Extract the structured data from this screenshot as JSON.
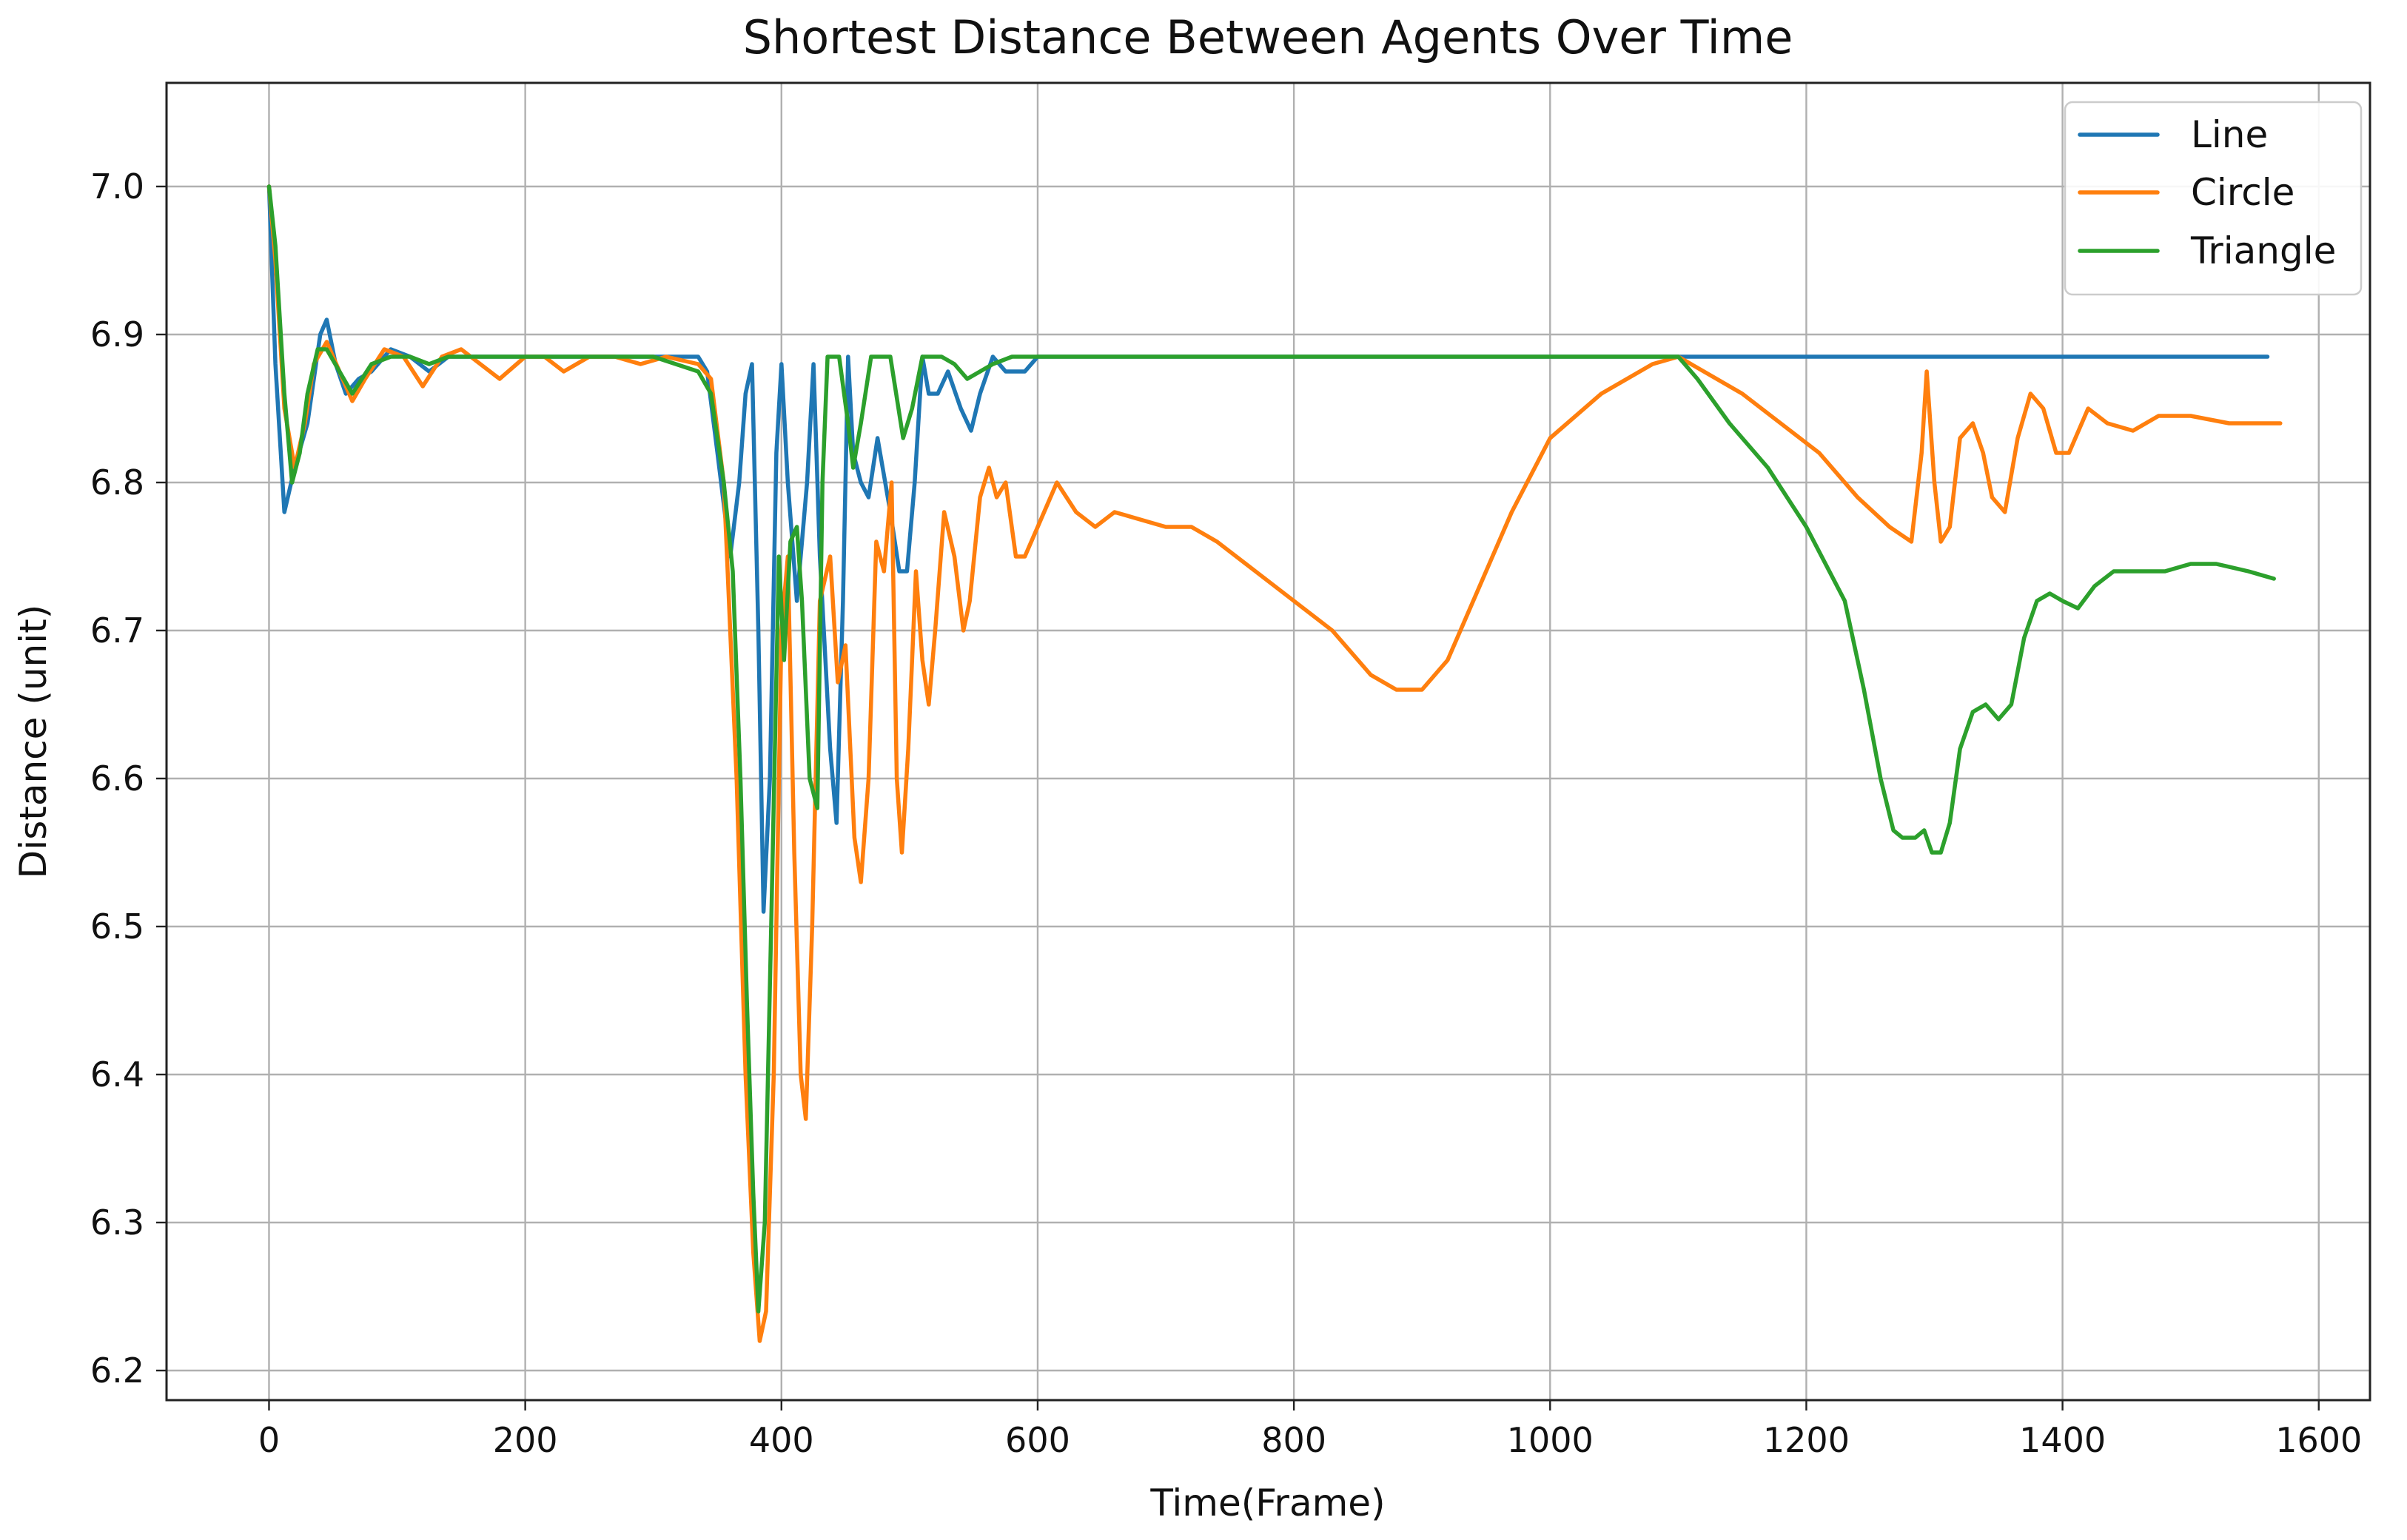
{
  "chart_data": {
    "type": "line",
    "title": "Shortest Distance Between Agents Over Time",
    "xlabel": "Time(Frame)",
    "ylabel": "Distance (unit)",
    "xlim": [
      -80,
      1640
    ],
    "ylim": [
      6.18,
      7.07
    ],
    "xticks": [
      0,
      200,
      400,
      600,
      800,
      1000,
      1200,
      1400,
      1600
    ],
    "xtick_labels": [
      "0",
      "200",
      "400",
      "600",
      "800",
      "1000",
      "1200",
      "1400",
      "1600"
    ],
    "yticks": [
      6.2,
      6.3,
      6.4,
      6.5,
      6.6,
      6.7,
      6.8,
      6.9,
      7.0
    ],
    "ytick_labels": [
      "6.2",
      "6.3",
      "6.4",
      "6.5",
      "6.6",
      "6.7",
      "6.8",
      "6.9",
      "7.0"
    ],
    "grid": true,
    "legend_position": "top-right",
    "series": [
      {
        "name": "Line",
        "color": "#1f77b4",
        "points": [
          [
            0,
            7.0
          ],
          [
            5,
            6.88
          ],
          [
            12,
            6.78
          ],
          [
            20,
            6.81
          ],
          [
            30,
            6.84
          ],
          [
            40,
            6.9
          ],
          [
            45,
            6.91
          ],
          [
            52,
            6.88
          ],
          [
            60,
            6.86
          ],
          [
            70,
            6.87
          ],
          [
            80,
            6.875
          ],
          [
            95,
            6.89
          ],
          [
            110,
            6.885
          ],
          [
            125,
            6.875
          ],
          [
            140,
            6.885
          ],
          [
            160,
            6.885
          ],
          [
            180,
            6.885
          ],
          [
            200,
            6.885
          ],
          [
            250,
            6.885
          ],
          [
            300,
            6.885
          ],
          [
            335,
            6.885
          ],
          [
            342,
            6.875
          ],
          [
            350,
            6.82
          ],
          [
            360,
            6.75
          ],
          [
            367,
            6.8
          ],
          [
            372,
            6.86
          ],
          [
            377,
            6.88
          ],
          [
            382,
            6.7
          ],
          [
            386,
            6.51
          ],
          [
            391,
            6.6
          ],
          [
            396,
            6.82
          ],
          [
            400,
            6.88
          ],
          [
            405,
            6.8
          ],
          [
            412,
            6.72
          ],
          [
            420,
            6.8
          ],
          [
            425,
            6.88
          ],
          [
            430,
            6.75
          ],
          [
            438,
            6.62
          ],
          [
            443,
            6.57
          ],
          [
            448,
            6.72
          ],
          [
            452,
            6.885
          ],
          [
            456,
            6.82
          ],
          [
            462,
            6.8
          ],
          [
            468,
            6.79
          ],
          [
            475,
            6.83
          ],
          [
            485,
            6.78
          ],
          [
            492,
            6.74
          ],
          [
            498,
            6.74
          ],
          [
            504,
            6.8
          ],
          [
            510,
            6.885
          ],
          [
            515,
            6.86
          ],
          [
            522,
            6.86
          ],
          [
            530,
            6.875
          ],
          [
            540,
            6.85
          ],
          [
            548,
            6.835
          ],
          [
            555,
            6.86
          ],
          [
            565,
            6.885
          ],
          [
            575,
            6.875
          ],
          [
            590,
            6.875
          ],
          [
            600,
            6.885
          ],
          [
            620,
            6.885
          ],
          [
            700,
            6.885
          ],
          [
            800,
            6.885
          ],
          [
            1000,
            6.885
          ],
          [
            1200,
            6.885
          ],
          [
            1400,
            6.885
          ],
          [
            1560,
            6.885
          ]
        ]
      },
      {
        "name": "Circle",
        "color": "#ff7f0e",
        "points": [
          [
            0,
            7.0
          ],
          [
            5,
            6.95
          ],
          [
            12,
            6.85
          ],
          [
            20,
            6.81
          ],
          [
            28,
            6.84
          ],
          [
            35,
            6.88
          ],
          [
            45,
            6.895
          ],
          [
            55,
            6.875
          ],
          [
            65,
            6.855
          ],
          [
            75,
            6.87
          ],
          [
            90,
            6.89
          ],
          [
            105,
            6.885
          ],
          [
            120,
            6.865
          ],
          [
            135,
            6.885
          ],
          [
            150,
            6.89
          ],
          [
            165,
            6.88
          ],
          [
            180,
            6.87
          ],
          [
            200,
            6.885
          ],
          [
            215,
            6.885
          ],
          [
            230,
            6.875
          ],
          [
            250,
            6.885
          ],
          [
            270,
            6.885
          ],
          [
            290,
            6.88
          ],
          [
            310,
            6.885
          ],
          [
            335,
            6.88
          ],
          [
            345,
            6.87
          ],
          [
            355,
            6.8
          ],
          [
            365,
            6.6
          ],
          [
            372,
            6.4
          ],
          [
            378,
            6.28
          ],
          [
            383,
            6.22
          ],
          [
            388,
            6.24
          ],
          [
            394,
            6.4
          ],
          [
            400,
            6.7
          ],
          [
            405,
            6.75
          ],
          [
            410,
            6.55
          ],
          [
            415,
            6.4
          ],
          [
            419,
            6.37
          ],
          [
            424,
            6.5
          ],
          [
            430,
            6.72
          ],
          [
            438,
            6.75
          ],
          [
            444,
            6.665
          ],
          [
            450,
            6.69
          ],
          [
            457,
            6.56
          ],
          [
            462,
            6.53
          ],
          [
            468,
            6.6
          ],
          [
            474,
            6.76
          ],
          [
            480,
            6.74
          ],
          [
            486,
            6.8
          ],
          [
            490,
            6.6
          ],
          [
            494,
            6.55
          ],
          [
            499,
            6.62
          ],
          [
            505,
            6.74
          ],
          [
            510,
            6.68
          ],
          [
            515,
            6.65
          ],
          [
            520,
            6.7
          ],
          [
            527,
            6.78
          ],
          [
            535,
            6.75
          ],
          [
            542,
            6.7
          ],
          [
            547,
            6.72
          ],
          [
            555,
            6.79
          ],
          [
            562,
            6.81
          ],
          [
            568,
            6.79
          ],
          [
            575,
            6.8
          ],
          [
            583,
            6.75
          ],
          [
            590,
            6.75
          ],
          [
            600,
            6.77
          ],
          [
            615,
            6.8
          ],
          [
            630,
            6.78
          ],
          [
            645,
            6.77
          ],
          [
            660,
            6.78
          ],
          [
            680,
            6.775
          ],
          [
            700,
            6.77
          ],
          [
            720,
            6.77
          ],
          [
            740,
            6.76
          ],
          [
            770,
            6.74
          ],
          [
            800,
            6.72
          ],
          [
            830,
            6.7
          ],
          [
            860,
            6.67
          ],
          [
            880,
            6.66
          ],
          [
            900,
            6.66
          ],
          [
            920,
            6.68
          ],
          [
            945,
            6.73
          ],
          [
            970,
            6.78
          ],
          [
            1000,
            6.83
          ],
          [
            1040,
            6.86
          ],
          [
            1080,
            6.88
          ],
          [
            1100,
            6.885
          ],
          [
            1120,
            6.875
          ],
          [
            1150,
            6.86
          ],
          [
            1180,
            6.84
          ],
          [
            1210,
            6.82
          ],
          [
            1240,
            6.79
          ],
          [
            1265,
            6.77
          ],
          [
            1282,
            6.76
          ],
          [
            1290,
            6.82
          ],
          [
            1294,
            6.875
          ],
          [
            1300,
            6.8
          ],
          [
            1305,
            6.76
          ],
          [
            1312,
            6.77
          ],
          [
            1320,
            6.83
          ],
          [
            1330,
            6.84
          ],
          [
            1338,
            6.82
          ],
          [
            1345,
            6.79
          ],
          [
            1355,
            6.78
          ],
          [
            1365,
            6.83
          ],
          [
            1375,
            6.86
          ],
          [
            1385,
            6.85
          ],
          [
            1395,
            6.82
          ],
          [
            1405,
            6.82
          ],
          [
            1420,
            6.85
          ],
          [
            1435,
            6.84
          ],
          [
            1455,
            6.835
          ],
          [
            1475,
            6.845
          ],
          [
            1500,
            6.845
          ],
          [
            1530,
            6.84
          ],
          [
            1570,
            6.84
          ]
        ]
      },
      {
        "name": "Triangle",
        "color": "#2ca02c",
        "points": [
          [
            0,
            7.0
          ],
          [
            5,
            6.96
          ],
          [
            12,
            6.86
          ],
          [
            18,
            6.8
          ],
          [
            24,
            6.82
          ],
          [
            30,
            6.86
          ],
          [
            38,
            6.89
          ],
          [
            45,
            6.89
          ],
          [
            55,
            6.875
          ],
          [
            65,
            6.86
          ],
          [
            80,
            6.88
          ],
          [
            95,
            6.885
          ],
          [
            110,
            6.885
          ],
          [
            125,
            6.88
          ],
          [
            140,
            6.885
          ],
          [
            160,
            6.885
          ],
          [
            180,
            6.885
          ],
          [
            200,
            6.885
          ],
          [
            250,
            6.885
          ],
          [
            300,
            6.885
          ],
          [
            335,
            6.875
          ],
          [
            345,
            6.86
          ],
          [
            355,
            6.8
          ],
          [
            362,
            6.74
          ],
          [
            368,
            6.6
          ],
          [
            373,
            6.45
          ],
          [
            378,
            6.32
          ],
          [
            382,
            6.24
          ],
          [
            387,
            6.3
          ],
          [
            392,
            6.5
          ],
          [
            398,
            6.75
          ],
          [
            402,
            6.68
          ],
          [
            407,
            6.76
          ],
          [
            412,
            6.77
          ],
          [
            416,
            6.72
          ],
          [
            422,
            6.6
          ],
          [
            428,
            6.58
          ],
          [
            432,
            6.8
          ],
          [
            436,
            6.885
          ],
          [
            445,
            6.885
          ],
          [
            452,
            6.84
          ],
          [
            456,
            6.81
          ],
          [
            462,
            6.84
          ],
          [
            470,
            6.885
          ],
          [
            485,
            6.885
          ],
          [
            495,
            6.83
          ],
          [
            502,
            6.85
          ],
          [
            510,
            6.885
          ],
          [
            525,
            6.885
          ],
          [
            535,
            6.88
          ],
          [
            545,
            6.87
          ],
          [
            555,
            6.875
          ],
          [
            565,
            6.88
          ],
          [
            580,
            6.885
          ],
          [
            600,
            6.885
          ],
          [
            650,
            6.885
          ],
          [
            700,
            6.885
          ],
          [
            800,
            6.885
          ],
          [
            900,
            6.885
          ],
          [
            1000,
            6.885
          ],
          [
            1080,
            6.885
          ],
          [
            1100,
            6.885
          ],
          [
            1115,
            6.87
          ],
          [
            1140,
            6.84
          ],
          [
            1170,
            6.81
          ],
          [
            1200,
            6.77
          ],
          [
            1230,
            6.72
          ],
          [
            1245,
            6.66
          ],
          [
            1258,
            6.6
          ],
          [
            1268,
            6.565
          ],
          [
            1275,
            6.56
          ],
          [
            1285,
            6.56
          ],
          [
            1292,
            6.565
          ],
          [
            1298,
            6.55
          ],
          [
            1305,
            6.55
          ],
          [
            1312,
            6.57
          ],
          [
            1320,
            6.62
          ],
          [
            1330,
            6.645
          ],
          [
            1340,
            6.65
          ],
          [
            1350,
            6.64
          ],
          [
            1360,
            6.65
          ],
          [
            1370,
            6.695
          ],
          [
            1380,
            6.72
          ],
          [
            1390,
            6.725
          ],
          [
            1400,
            6.72
          ],
          [
            1412,
            6.715
          ],
          [
            1425,
            6.73
          ],
          [
            1440,
            6.74
          ],
          [
            1460,
            6.74
          ],
          [
            1480,
            6.74
          ],
          [
            1500,
            6.745
          ],
          [
            1520,
            6.745
          ],
          [
            1545,
            6.74
          ],
          [
            1565,
            6.735
          ]
        ]
      }
    ]
  }
}
